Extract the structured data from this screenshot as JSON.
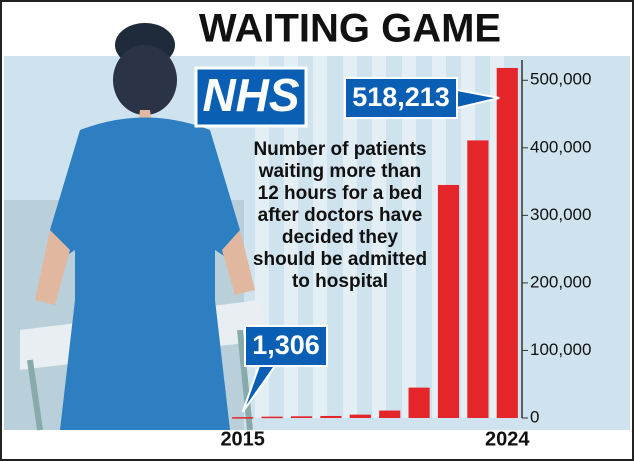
{
  "chart_data": {
    "type": "bar",
    "title": "WAITING GAME",
    "logo": "NHS",
    "annotation": [
      "Number of patients",
      "waiting more than",
      "12 hours for a bed",
      "after doctors have",
      "decided they",
      "should be admitted",
      "to hospital"
    ],
    "categories": [
      "2015",
      null,
      null,
      null,
      null,
      null,
      null,
      null,
      null,
      "2024"
    ],
    "values": [
      1306,
      2000,
      2500,
      3000,
      5000,
      11000,
      45000,
      345000,
      411000,
      518213
    ],
    "value_labels": [
      "1,306",
      null,
      null,
      null,
      null,
      null,
      null,
      null,
      null,
      "518,213"
    ],
    "color": "#e4262b",
    "ylim": [
      0,
      530000
    ],
    "yticks": [
      0,
      {
        "value": 100000,
        "label": "100,000"
      },
      {
        "value": 200000,
        "label": "200,000"
      },
      {
        "value": 300000,
        "label": "300,000"
      },
      {
        "value": 400000,
        "label": "400,000"
      },
      {
        "value": 500000,
        "label": "500,000"
      }
    ],
    "grid": false
  }
}
